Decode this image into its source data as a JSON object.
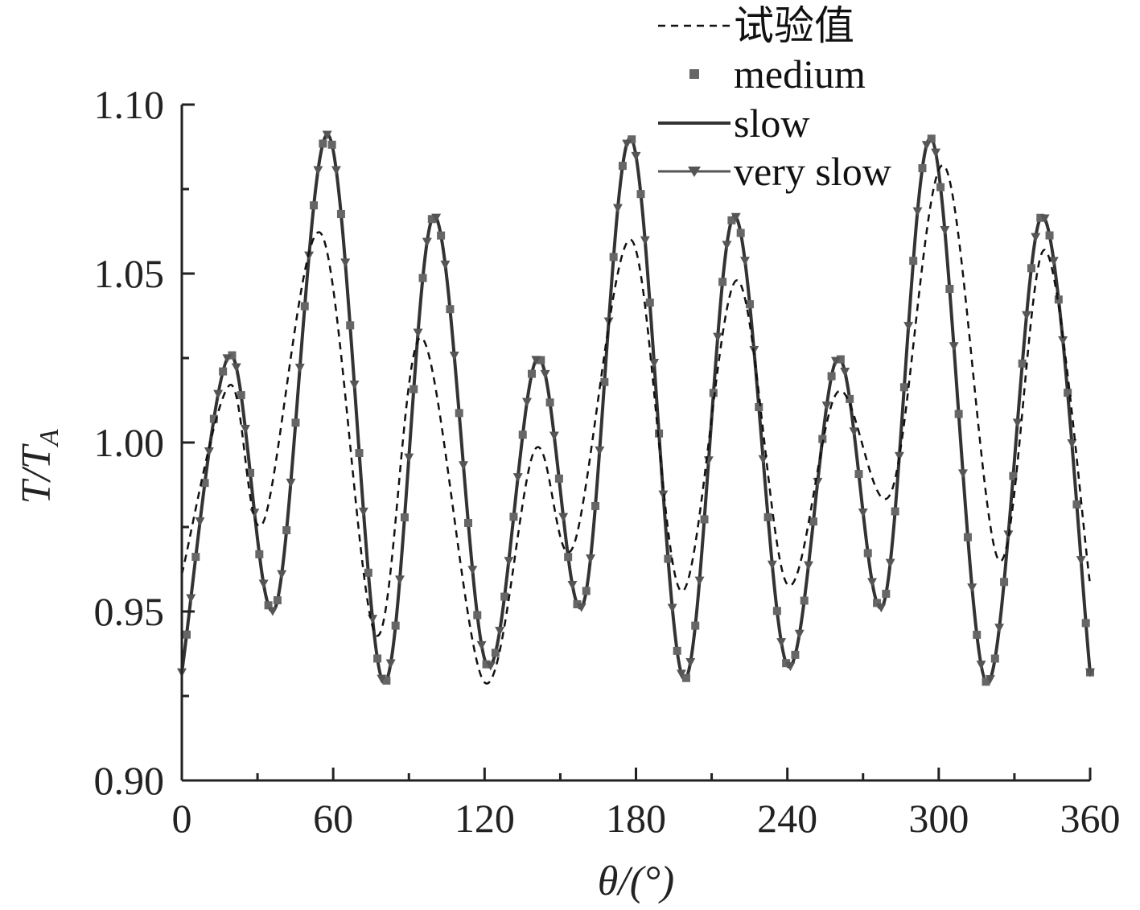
{
  "chart_data": {
    "type": "line",
    "xlabel": "θ/(°)",
    "ylabel": "T/T_A",
    "xlim": [
      0,
      360
    ],
    "ylim": [
      0.9,
      1.1
    ],
    "xticks": [
      "0",
      "60",
      "120",
      "180",
      "240",
      "300",
      "360"
    ],
    "yticks": [
      "0.90",
      "0.95",
      "1.00",
      "1.05",
      "1.10"
    ],
    "grid": false,
    "legend": "top-right",
    "series": [
      {
        "name": "试验值",
        "style": "dashed",
        "color": "#111111",
        "x": [
          0,
          19,
          32,
          55,
          77,
          95,
          120,
          140,
          155,
          178,
          198,
          220,
          240,
          260,
          281,
          302,
          324,
          342,
          360
        ],
        "y": [
          0.961,
          1.017,
          0.976,
          1.062,
          0.943,
          1.031,
          0.929,
          0.998,
          0.969,
          1.06,
          0.956,
          1.048,
          0.958,
          1.015,
          0.985,
          1.082,
          0.965,
          1.057,
          0.958
        ]
      },
      {
        "name": "medium",
        "style": "square-markers",
        "color": "#666666",
        "x": [
          0,
          19,
          37,
          58,
          80,
          100,
          121,
          141,
          159,
          178,
          199,
          219,
          240,
          260,
          278,
          297,
          319,
          341,
          360
        ],
        "y": [
          0.932,
          1.026,
          0.951,
          1.091,
          0.929,
          1.067,
          0.934,
          1.025,
          0.952,
          1.09,
          0.93,
          1.067,
          0.934,
          1.025,
          0.952,
          1.09,
          0.929,
          1.067,
          0.932
        ]
      },
      {
        "name": "slow",
        "style": "solid",
        "color": "#333333",
        "x": [
          0,
          19,
          37,
          58,
          80,
          100,
          121,
          141,
          159,
          178,
          199,
          219,
          240,
          260,
          278,
          297,
          319,
          341,
          360
        ],
        "y": [
          0.932,
          1.026,
          0.951,
          1.091,
          0.929,
          1.067,
          0.934,
          1.025,
          0.952,
          1.09,
          0.93,
          1.067,
          0.934,
          1.025,
          0.952,
          1.09,
          0.929,
          1.067,
          0.932
        ]
      },
      {
        "name": "very slow",
        "style": "triangle-markers",
        "color": "#555555",
        "x": [
          0,
          19,
          37,
          58,
          80,
          100,
          121,
          141,
          159,
          178,
          199,
          219,
          240,
          260,
          278,
          297,
          319,
          341,
          360
        ],
        "y": [
          0.932,
          1.026,
          0.951,
          1.091,
          0.929,
          1.067,
          0.934,
          1.025,
          0.952,
          1.09,
          0.93,
          1.067,
          0.934,
          1.025,
          0.952,
          1.09,
          0.929,
          1.067,
          0.932
        ]
      }
    ]
  }
}
